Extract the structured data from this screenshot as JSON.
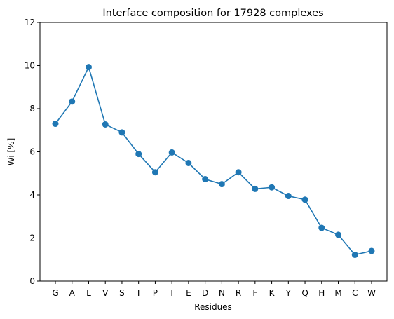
{
  "chart_data": {
    "type": "line",
    "title": "Interface composition for 17928 complexes",
    "xlabel": "Residues",
    "ylabel": "Wi [%]",
    "categories": [
      "G",
      "A",
      "L",
      "V",
      "S",
      "T",
      "P",
      "I",
      "E",
      "D",
      "N",
      "R",
      "F",
      "K",
      "Y",
      "Q",
      "H",
      "M",
      "C",
      "W"
    ],
    "series": [
      {
        "values": [
          7.3,
          8.33,
          9.93,
          7.27,
          6.9,
          5.9,
          5.05,
          5.97,
          5.48,
          4.73,
          4.5,
          5.05,
          4.28,
          4.35,
          3.95,
          3.78,
          2.47,
          2.15,
          1.22,
          1.4
        ],
        "color": "#1f77b4",
        "marker": "circle"
      }
    ],
    "ylim": [
      0,
      12
    ],
    "yticks": [
      0,
      2,
      4,
      6,
      8,
      10,
      12
    ],
    "grid": false,
    "legend": "none"
  }
}
